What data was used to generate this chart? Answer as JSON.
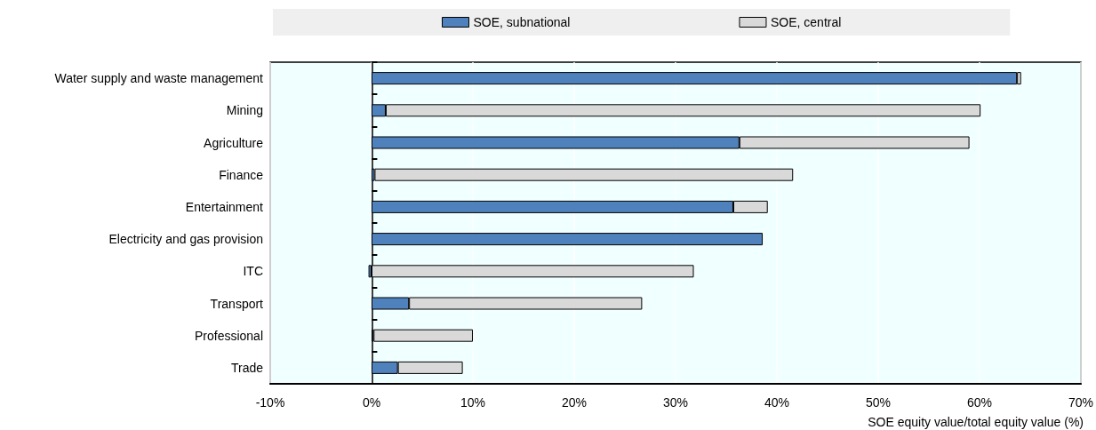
{
  "chart_data": {
    "type": "bar",
    "orientation": "horizontal",
    "stacked": true,
    "categories": [
      "Water supply and waste management",
      "Mining",
      "Agriculture",
      "Finance",
      "Entertainment",
      "Electricity and gas provision",
      "ITC",
      "Transport",
      "Professional",
      "Trade"
    ],
    "series": [
      {
        "name": "SOE, subnational",
        "color": "#4f81bd",
        "values": [
          63.7,
          1.4,
          36.3,
          0.3,
          35.7,
          38.6,
          -0.3,
          3.7,
          0.2,
          2.6
        ]
      },
      {
        "name": "SOE, central",
        "color": "#d9d9d9",
        "values": [
          0.4,
          58.7,
          22.7,
          41.3,
          3.4,
          null,
          31.8,
          23.0,
          9.8,
          6.4
        ]
      }
    ],
    "xlim": [
      -10,
      70
    ],
    "xticks": [
      {
        "value": -10,
        "label": "-10%"
      },
      {
        "value": 0,
        "label": "0%"
      },
      {
        "value": 10,
        "label": "10%"
      },
      {
        "value": 20,
        "label": "20%"
      },
      {
        "value": 30,
        "label": "30%"
      },
      {
        "value": 40,
        "label": "40%"
      },
      {
        "value": 50,
        "label": "50%"
      },
      {
        "value": 60,
        "label": "60%"
      },
      {
        "value": 70,
        "label": "70%"
      }
    ],
    "xlabel": "SOE equity value/total equity value (%)",
    "grid": "x",
    "legend": "top"
  }
}
